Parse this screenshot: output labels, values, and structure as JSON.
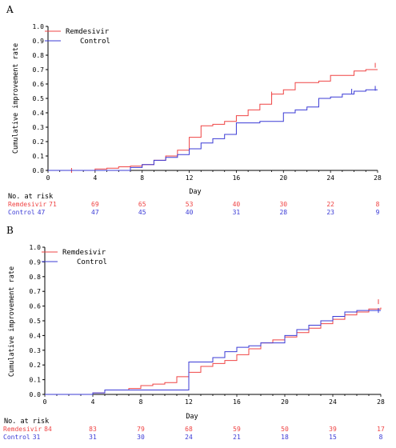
{
  "panels": [
    {
      "label": "A",
      "chart_data": {
        "type": "line",
        "step": true,
        "xlabel": "Day",
        "ylabel": "Cumulative improvement rate",
        "xlim": [
          0,
          28
        ],
        "ylim": [
          0,
          1.0
        ],
        "x_ticks": [
          "0",
          "4",
          "8",
          "12",
          "16",
          "20",
          "24",
          "28"
        ],
        "y_ticks": [
          "0.0",
          "0.1",
          "0.2",
          "0.3",
          "0.4",
          "0.5",
          "0.6",
          "0.7",
          "0.8",
          "0.9",
          "1.0"
        ],
        "grid": false,
        "legend_position": "top-left",
        "series": [
          {
            "name": "Remdesivir",
            "color": "#ef4444",
            "x": [
              0,
              2,
              4,
              5,
              6,
              7,
              8,
              9,
              10,
              11,
              12,
              13,
              14,
              15,
              16,
              17,
              18,
              19,
              20,
              21,
              22,
              23,
              24,
              26,
              27,
              28
            ],
            "y": [
              0,
              0,
              0.01,
              0.015,
              0.025,
              0.03,
              0.04,
              0.07,
              0.1,
              0.14,
              0.23,
              0.31,
              0.32,
              0.34,
              0.38,
              0.42,
              0.46,
              0.53,
              0.56,
              0.61,
              0.61,
              0.62,
              0.66,
              0.69,
              0.7,
              0.7
            ],
            "censored": [
              [
                2,
                0
              ],
              [
                19,
                0.53
              ],
              [
                27.8,
                0.73
              ]
            ]
          },
          {
            "name": "Control",
            "color": "#3b3bd6",
            "x": [
              0,
              7,
              8,
              9,
              10,
              11,
              12,
              13,
              14,
              15,
              16,
              18,
              20,
              21,
              22,
              23,
              24,
              25,
              26,
              27,
              28
            ],
            "y": [
              0,
              0.02,
              0.04,
              0.07,
              0.09,
              0.11,
              0.15,
              0.19,
              0.22,
              0.25,
              0.33,
              0.34,
              0.4,
              0.42,
              0.44,
              0.5,
              0.51,
              0.53,
              0.55,
              0.56,
              0.56
            ],
            "censored": [
              [
                25.8,
                0.55
              ],
              [
                27.8,
                0.57
              ]
            ]
          }
        ]
      },
      "risk_table": {
        "title": "No. at risk",
        "rows": [
          {
            "name": "Remdesivir",
            "color": "#ef4444",
            "values": [
              "71",
              "69",
              "65",
              "53",
              "40",
              "30",
              "22",
              "8"
            ]
          },
          {
            "name": "Control",
            "color": "#3b3bd6",
            "values": [
              "47",
              "47",
              "45",
              "40",
              "31",
              "28",
              "23",
              "9"
            ]
          }
        ]
      }
    },
    {
      "label": "B",
      "chart_data": {
        "type": "line",
        "step": true,
        "xlabel": "Day",
        "ylabel": "Cumulative improvement rate",
        "xlim": [
          0,
          28
        ],
        "ylim": [
          0,
          1.0
        ],
        "x_ticks": [
          "0",
          "4",
          "8",
          "12",
          "16",
          "20",
          "24",
          "28"
        ],
        "y_ticks": [
          "0.0",
          "0.1",
          "0.2",
          "0.3",
          "0.4",
          "0.5",
          "0.6",
          "0.7",
          "0.8",
          "0.9",
          "1.0"
        ],
        "grid": false,
        "legend_position": "top-left",
        "series": [
          {
            "name": "Remdesivir",
            "color": "#ef4444",
            "x": [
              0,
              4,
              5,
              7,
              8,
              9,
              10,
              11,
              12,
              13,
              14,
              15,
              16,
              17,
              18,
              19,
              20,
              21,
              22,
              23,
              24,
              25,
              26,
              27,
              28
            ],
            "y": [
              0,
              0.01,
              0.03,
              0.04,
              0.06,
              0.07,
              0.08,
              0.12,
              0.15,
              0.19,
              0.21,
              0.23,
              0.27,
              0.31,
              0.35,
              0.37,
              0.39,
              0.42,
              0.45,
              0.48,
              0.51,
              0.54,
              0.56,
              0.58,
              0.59
            ],
            "censored": [
              [
                27.8,
                0.63
              ]
            ]
          },
          {
            "name": "Control",
            "color": "#3b3bd6",
            "x": [
              0,
              4,
              5,
              11,
              12,
              13,
              14,
              15,
              16,
              17,
              18,
              20,
              21,
              22,
              23,
              24,
              25,
              26,
              27,
              28
            ],
            "y": [
              0,
              0.01,
              0.03,
              0.03,
              0.22,
              0.22,
              0.25,
              0.29,
              0.32,
              0.33,
              0.35,
              0.4,
              0.44,
              0.47,
              0.5,
              0.53,
              0.56,
              0.57,
              0.57,
              0.57
            ],
            "censored": [
              [
                27.8,
                0.57
              ]
            ]
          }
        ]
      },
      "risk_table": {
        "title": "No. at risk",
        "rows": [
          {
            "name": "Remdesivir",
            "color": "#ef4444",
            "values": [
              "84",
              "83",
              "79",
              "68",
              "59",
              "50",
              "39",
              "17"
            ]
          },
          {
            "name": "Control",
            "color": "#3b3bd6",
            "values": [
              "31",
              "31",
              "30",
              "24",
              "21",
              "18",
              "15",
              "8"
            ]
          }
        ]
      }
    }
  ]
}
